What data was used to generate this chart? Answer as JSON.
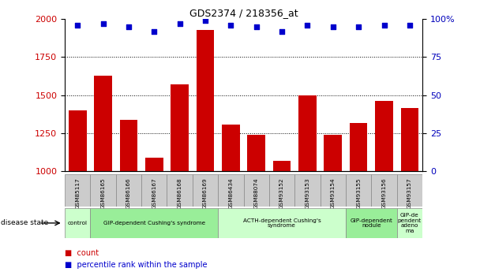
{
  "title": "GDS2374 / 218356_at",
  "samples": [
    "GSM85117",
    "GSM86165",
    "GSM86166",
    "GSM86167",
    "GSM86168",
    "GSM86169",
    "GSM86434",
    "GSM88074",
    "GSM93152",
    "GSM93153",
    "GSM93154",
    "GSM93155",
    "GSM93156",
    "GSM93157"
  ],
  "counts": [
    1400,
    1630,
    1340,
    1090,
    1570,
    1930,
    1305,
    1240,
    1070,
    1500,
    1240,
    1320,
    1460,
    1415
  ],
  "percentiles": [
    96,
    97,
    95,
    92,
    97,
    99,
    96,
    95,
    92,
    96,
    95,
    95,
    96,
    96
  ],
  "bar_color": "#cc0000",
  "dot_color": "#0000cc",
  "ylim_left": [
    1000,
    2000
  ],
  "ylim_right": [
    0,
    100
  ],
  "yticks_left": [
    1000,
    1250,
    1500,
    1750,
    2000
  ],
  "yticks_right": [
    0,
    25,
    50,
    75,
    100
  ],
  "grid_values": [
    1250,
    1500,
    1750
  ],
  "disease_groups": [
    {
      "label": "control",
      "indices": [
        0
      ],
      "color": "#ccffcc"
    },
    {
      "label": "GIP-dependent Cushing's syndrome",
      "indices": [
        1,
        2,
        3,
        4,
        5
      ],
      "color": "#99ee99"
    },
    {
      "label": "ACTH-dependent Cushing's\nsyndrome",
      "indices": [
        6,
        7,
        8,
        9,
        10
      ],
      "color": "#ccffcc"
    },
    {
      "label": "GIP-dependent\nnodule",
      "indices": [
        11,
        12
      ],
      "color": "#99ee99"
    },
    {
      "label": "GIP-de\npendent\nadeno\nma",
      "indices": [
        13
      ],
      "color": "#ccffcc"
    }
  ],
  "disease_state_label": "disease state",
  "legend_count_label": "count",
  "legend_percentile_label": "percentile rank within the sample",
  "tick_label_color_left": "#cc0000",
  "tick_label_color_right": "#0000bb",
  "plot_bg_color": "#ffffff",
  "sample_box_color": "#cccccc"
}
